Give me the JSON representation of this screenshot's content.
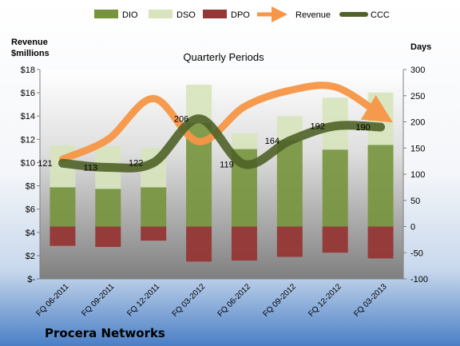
{
  "chart_data": {
    "type": "bar",
    "title": "Quarterly Periods",
    "company": "Procera Networks",
    "left_axis_label": "Revenue\n$millions",
    "right_axis_label": "Days",
    "categories": [
      "FQ 06-2011",
      "FQ 09-2011",
      "FQ 12-2011",
      "FQ 03-2012",
      "FQ 06-2012",
      "FQ 09-2012",
      "FQ 12-2012",
      "FQ 03-2013"
    ],
    "left_ticks": [
      "$-",
      "$2",
      "$4",
      "$6",
      "$8",
      "$10",
      "$12",
      "$14",
      "$16",
      "$18"
    ],
    "left_range": [
      0,
      18
    ],
    "right_ticks": [
      "-100",
      "-50",
      "0",
      "50",
      "100",
      "150",
      "200",
      "250",
      "300"
    ],
    "right_range": [
      -100,
      300
    ],
    "series": [
      {
        "name": "DIO",
        "axis": "right",
        "kind": "stacked-bar",
        "color": "#77933c",
        "values": [
          75,
          72,
          75,
          198,
          148,
          165,
          147,
          156
        ]
      },
      {
        "name": "DSO",
        "axis": "right",
        "kind": "stacked-bar",
        "color": "#d7e4bd",
        "values": [
          80,
          82,
          75,
          73,
          30,
          46,
          99,
          100
        ]
      },
      {
        "name": "DPO",
        "axis": "right",
        "kind": "negative-bar",
        "color": "#953735",
        "values": [
          -37,
          -39,
          -27,
          -67,
          -65,
          -58,
          -50,
          -61
        ]
      },
      {
        "name": "Revenue",
        "axis": "left",
        "kind": "smooth-line-arrow",
        "color": "#f79646",
        "values": [
          10.3,
          12.0,
          15.5,
          11.8,
          14.8,
          16.2,
          16.5,
          14.1
        ]
      },
      {
        "name": "CCC",
        "axis": "right",
        "kind": "smooth-line",
        "color": "#4f6228",
        "values": [
          121,
          113,
          122,
          206,
          119,
          164,
          192,
          190
        ]
      }
    ],
    "ccc_labels": [
      "121",
      "113",
      "122",
      "206",
      "119",
      "164",
      "192",
      "190"
    ],
    "grid": false,
    "legend": "top"
  }
}
